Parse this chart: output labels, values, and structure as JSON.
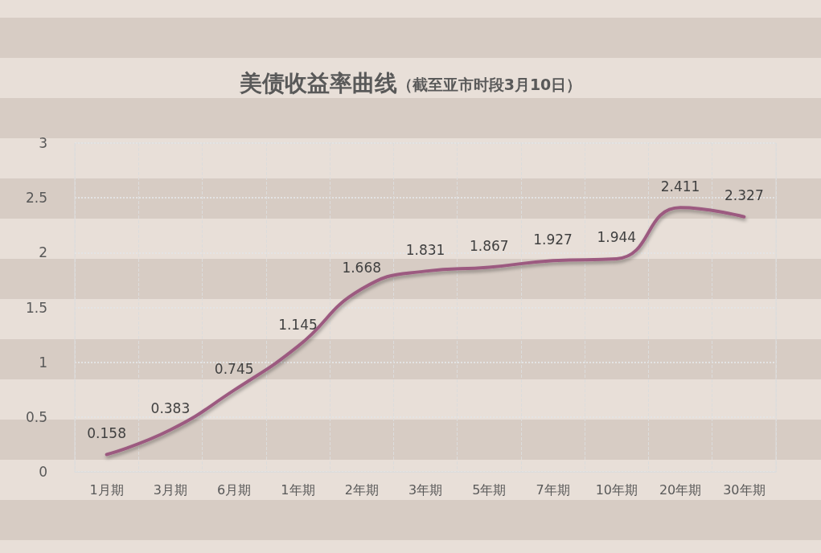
{
  "chart_data": {
    "type": "line",
    "title": "美债收益率曲线",
    "subtitle": "（截至亚市时段3月10日）",
    "categories": [
      "1月期",
      "3月期",
      "6月期",
      "1年期",
      "2年期",
      "3年期",
      "5年期",
      "7年期",
      "10年期",
      "20年期",
      "30年期"
    ],
    "values": [
      0.158,
      0.383,
      0.745,
      1.145,
      1.668,
      1.831,
      1.867,
      1.927,
      1.944,
      2.411,
      2.327
    ],
    "color": "#9c5a80",
    "ylim": [
      0,
      3
    ],
    "yticks": [
      0,
      0.5,
      1,
      1.5,
      2,
      2.5,
      3
    ],
    "grid": true,
    "data_labels": true,
    "marker": "none",
    "line_style": "solid"
  }
}
